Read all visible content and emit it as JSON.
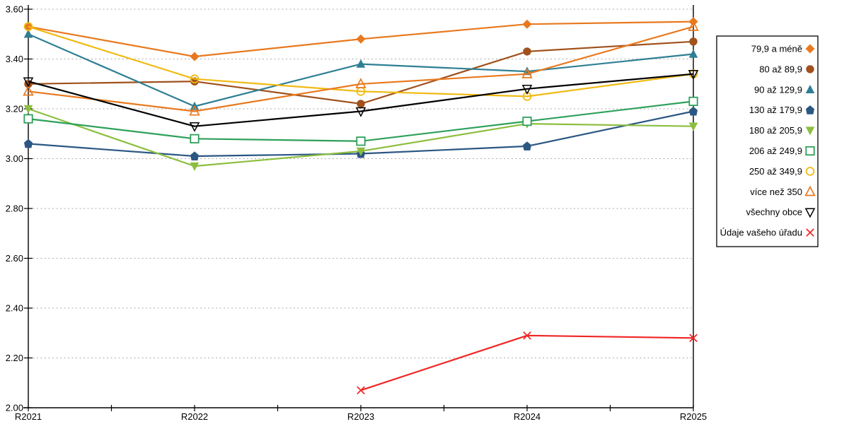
{
  "chart_data": {
    "type": "line",
    "title": "",
    "xlabel": "",
    "ylabel": "",
    "categories": [
      "R2021",
      "R2022",
      "R2023",
      "R2024",
      "R2025"
    ],
    "ylim": [
      2.0,
      3.6
    ],
    "ytick_step": 0.2,
    "ytick_labels": [
      "2.00",
      "2.20",
      "2.40",
      "2.60",
      "2.80",
      "3.00",
      "3.20",
      "3.40",
      "3.60"
    ],
    "grid": {
      "horizontal": true,
      "style": "dotted",
      "color": "#ABABAB"
    },
    "axis_color": "#000000",
    "x_minor_ticks_between_categories": true,
    "legend": {
      "position": "right",
      "background": "#FFFFFF",
      "border_color": "#000000"
    },
    "series": [
      {
        "name": "79,9 a méně",
        "marker": "diamond",
        "color": "#E8791E",
        "values": [
          3.53,
          3.41,
          3.48,
          3.54,
          3.55
        ]
      },
      {
        "name": "80 až 89,9",
        "marker": "circle",
        "color": "#A0511C",
        "values": [
          3.3,
          3.31,
          3.22,
          3.43,
          3.47
        ]
      },
      {
        "name": "90 až 129,9",
        "marker": "triangle-up",
        "color": "#2E7F93",
        "values": [
          3.5,
          3.21,
          3.38,
          3.35,
          3.42
        ]
      },
      {
        "name": "130 až 179,9",
        "marker": "pentagon",
        "color": "#2B5783",
        "values": [
          3.06,
          3.01,
          3.02,
          3.05,
          3.19
        ]
      },
      {
        "name": "180 až 205,9",
        "marker": "triangle-down",
        "color": "#8CBE3F",
        "values": [
          3.2,
          2.97,
          3.03,
          3.14,
          3.13
        ]
      },
      {
        "name": "206 až 249,9",
        "marker": "square-open",
        "color": "#2EA05A",
        "values": [
          3.16,
          3.08,
          3.07,
          3.15,
          3.23
        ]
      },
      {
        "name": "250 až 349,9",
        "marker": "circle-open",
        "color": "#F0BA12",
        "values": [
          3.53,
          3.32,
          3.27,
          3.25,
          3.34
        ]
      },
      {
        "name": "více než 350",
        "marker": "triangle-open",
        "color": "#E8791E",
        "values": [
          3.27,
          3.19,
          3.3,
          3.34,
          3.53
        ]
      },
      {
        "name": "všechny obce",
        "marker": "triangle-down-open",
        "color": "#000000",
        "values": [
          3.31,
          3.13,
          3.19,
          3.28,
          3.34
        ]
      },
      {
        "name": "Údaje vašeho úřadu",
        "marker": "x",
        "color": "#F02525",
        "values": [
          null,
          null,
          2.07,
          2.29,
          2.28
        ]
      }
    ]
  }
}
